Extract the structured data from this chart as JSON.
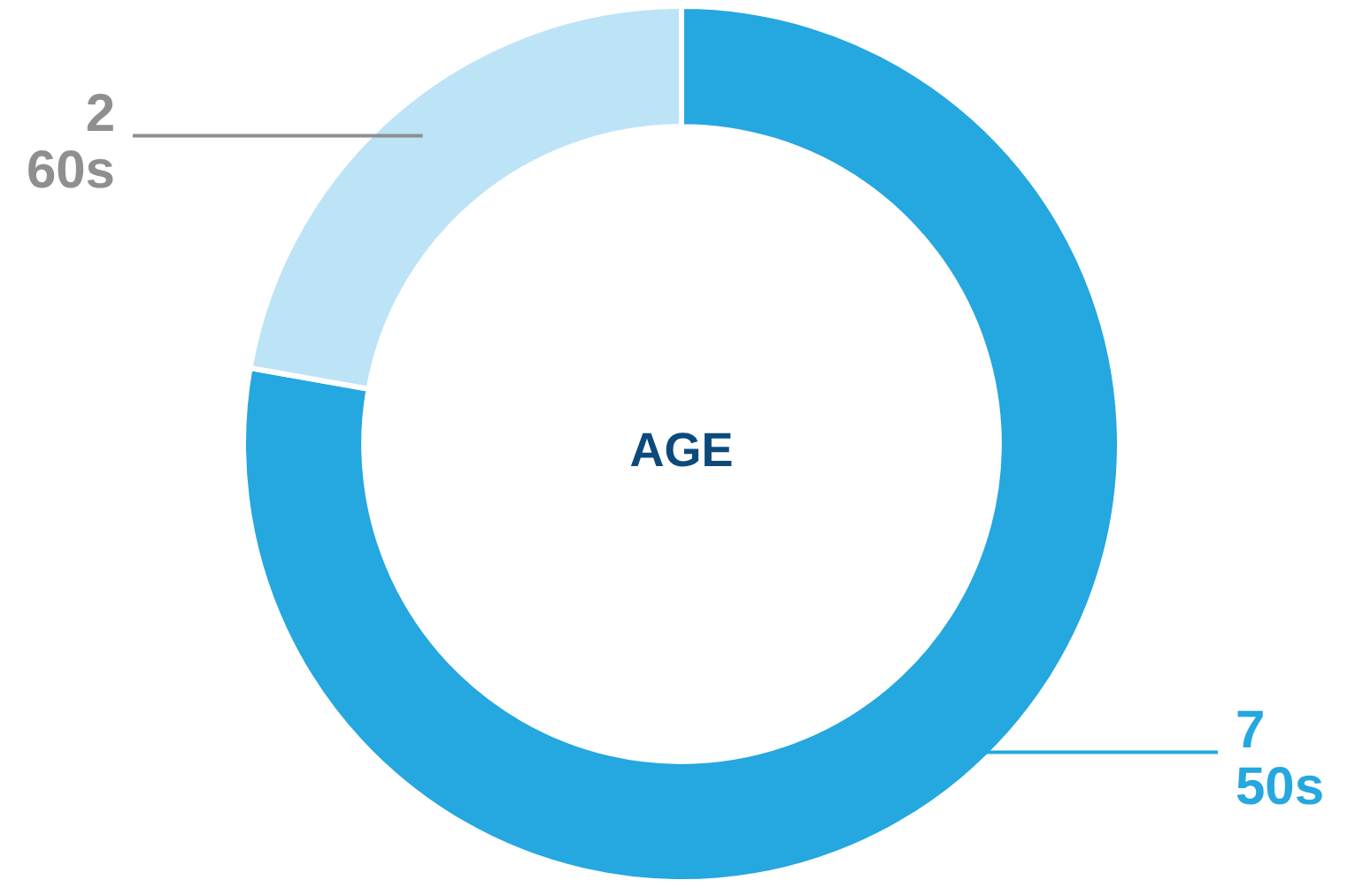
{
  "chart_data": {
    "type": "donut",
    "title": "AGE",
    "categories": [
      "50s",
      "60s"
    ],
    "values": [
      7,
      2
    ],
    "colors": [
      "#25a7e0",
      "#bde3f7"
    ],
    "data_labels": true,
    "legend": false
  }
}
